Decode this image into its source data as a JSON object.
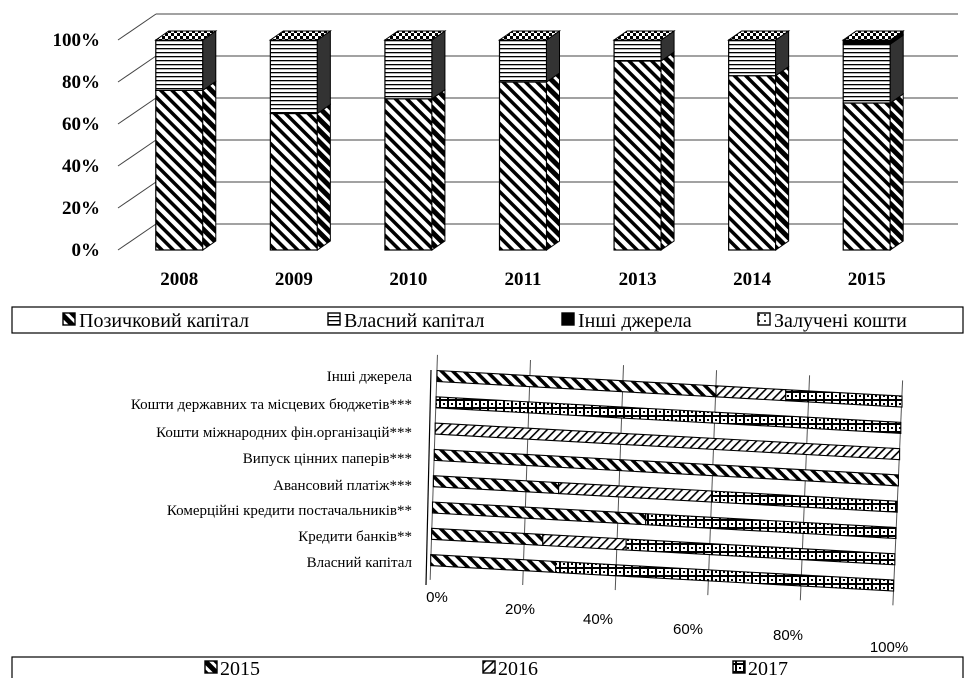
{
  "chart_data": [
    {
      "type": "bar",
      "stacked": true,
      "percent": true,
      "categories": [
        "2008",
        "2009",
        "2010",
        "2011",
        "2013",
        "2014",
        "2015"
      ],
      "series": [
        {
          "name": "Позичковий капітал",
          "values": [
            76,
            65,
            72,
            80,
            90,
            83,
            70
          ]
        },
        {
          "name": "Власний капітал",
          "values": [
            24,
            35,
            28,
            20,
            10,
            17,
            28
          ]
        },
        {
          "name": "Інші джерела",
          "values": [
            0,
            0,
            0,
            0,
            0,
            0,
            2
          ]
        },
        {
          "name": "Залучені кошти",
          "values": [
            0,
            0,
            0,
            0,
            0,
            0,
            0
          ]
        }
      ],
      "yticks": [
        "0%",
        "20%",
        "40%",
        "60%",
        "80%",
        "100%"
      ],
      "ylim": [
        0,
        100
      ],
      "grid": true,
      "legend_position": "bottom"
    },
    {
      "type": "bar",
      "orientation": "horizontal",
      "stacked": true,
      "percent": true,
      "categories": [
        "Інші джерела",
        "Кошти державних та місцевих бюджетів***",
        "Кошти міжнародних фін.організацій***",
        "Випуск цінних паперів***",
        "Авансовий платіж***",
        "Комерційні кредити постачальників**",
        "Кредити банків**",
        "Власний капітал"
      ],
      "series": [
        {
          "name": "2015",
          "values": [
            60,
            0,
            0,
            100,
            27,
            46,
            24,
            27
          ]
        },
        {
          "name": "2016",
          "values": [
            15,
            0,
            100,
            0,
            33,
            0,
            18,
            0
          ]
        },
        {
          "name": "2017",
          "values": [
            25,
            100,
            0,
            0,
            40,
            54,
            58,
            73
          ]
        }
      ],
      "xticks": [
        "0%",
        "20%",
        "40%",
        "60%",
        "80%",
        "100%"
      ],
      "xlim": [
        0,
        100
      ],
      "grid": true,
      "legend_position": "bottom"
    }
  ]
}
